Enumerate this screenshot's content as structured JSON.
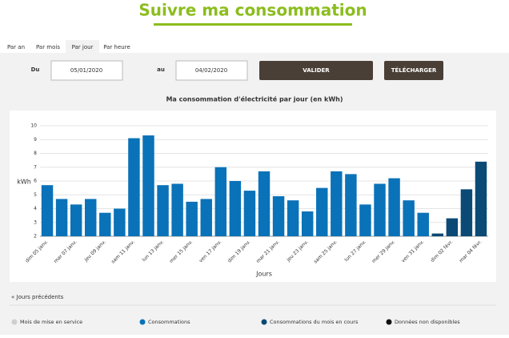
{
  "header": {
    "title": "Suivre ma consommation"
  },
  "tabs": [
    "Par an",
    "Par mois",
    "Par jour",
    "Par heure"
  ],
  "form": {
    "from_label": "Du",
    "from_value": "05/01/2020",
    "to_label": "au",
    "to_value": "04/02/2020",
    "submit": "VALIDER",
    "download": "TÉLÉCHARGER"
  },
  "navigation": {
    "previous": "« Jours précédents"
  },
  "chart_data": {
    "type": "bar",
    "title": "Ma consommation d'électricité par jour (en kWh)",
    "y_label": "kWh",
    "x_label": "Jours",
    "categories": [
      "dim 05 janv.",
      null,
      "mar 07 janv.",
      null,
      "jeu 09 janv.",
      null,
      "sam 11 janv.",
      null,
      "lun 13 janv.",
      null,
      "mer 15 janv.",
      null,
      "ven 17 janv.",
      null,
      "dim 19 janv.",
      null,
      "mar 21 janv.",
      null,
      "jeu 23 janv.",
      null,
      "sam 25 janv.",
      null,
      "lun 27 janv.",
      null,
      "mer 29 janv.",
      null,
      "ven 31 janv.",
      null,
      "dim 02 févr.",
      null,
      "mar 04 févr."
    ],
    "series": [
      {
        "name": "Mois de mise en service",
        "color": "#cfcfcf",
        "values": [
          null,
          null,
          null,
          null,
          null,
          null,
          null,
          null,
          null,
          null,
          null,
          null,
          null,
          null,
          null,
          null,
          null,
          null,
          null,
          null,
          null,
          null,
          null,
          null,
          null,
          null,
          null,
          null,
          null,
          null,
          null
        ]
      },
      {
        "name": "Consommations",
        "color": "#0a72b8",
        "values": [
          5.7,
          4.7,
          4.3,
          4.7,
          3.7,
          4.0,
          9.1,
          9.3,
          5.7,
          5.8,
          4.5,
          4.7,
          7.0,
          6.0,
          5.3,
          6.7,
          4.9,
          4.6,
          3.8,
          5.5,
          6.7,
          6.5,
          4.3,
          5.8,
          6.2,
          4.6,
          3.7,
          null,
          null,
          null,
          null
        ]
      },
      {
        "name": "Consommations du mois en cours",
        "color": "#0b4a75",
        "values": [
          null,
          null,
          null,
          null,
          null,
          null,
          null,
          null,
          null,
          null,
          null,
          null,
          null,
          null,
          null,
          null,
          null,
          null,
          null,
          null,
          null,
          null,
          null,
          null,
          null,
          null,
          null,
          2.2,
          3.3,
          5.4,
          7.4
        ]
      },
      {
        "name": "Données non disponibles",
        "color": "#111111",
        "values": [
          null,
          null,
          null,
          null,
          null,
          null,
          null,
          null,
          null,
          null,
          null,
          null,
          null,
          null,
          null,
          null,
          null,
          null,
          null,
          null,
          null,
          null,
          null,
          null,
          null,
          null,
          null,
          null,
          null,
          null,
          null
        ]
      }
    ],
    "ylim": [
      2,
      10
    ],
    "yticks": [
      2,
      3,
      4,
      5,
      6,
      7,
      8,
      9,
      10
    ],
    "grid": true
  }
}
